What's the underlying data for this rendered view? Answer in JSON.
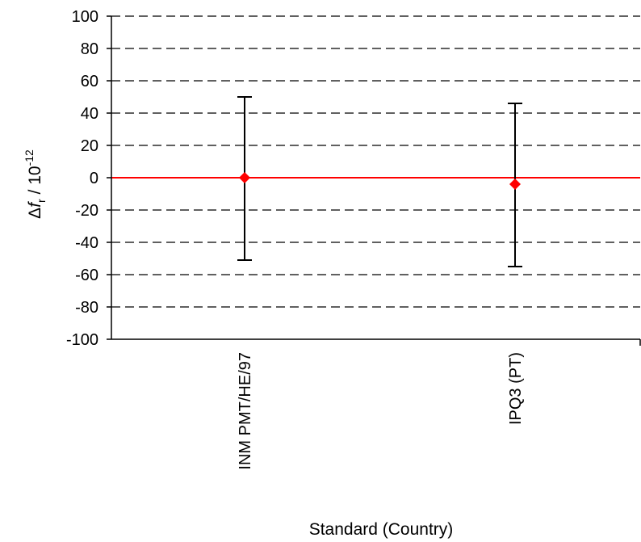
{
  "chart_data": {
    "type": "scatter",
    "categories": [
      "INM PMT/HE/97",
      "IPQ3 (PT)"
    ],
    "series": [
      {
        "values": [
          0,
          -4
        ],
        "error_low": [
          -51,
          -55
        ],
        "error_high": [
          50,
          46
        ],
        "marker": "diamond",
        "color": "#ff0000"
      }
    ],
    "reference_line": {
      "y": 0,
      "color": "#ff0000"
    },
    "yticks": [
      "100",
      "80",
      "60",
      "40",
      "20",
      "0",
      "-20",
      "-40",
      "-60",
      "-80",
      "-100"
    ],
    "ylim": [
      -100,
      100
    ],
    "ylabel": {
      "prefix": "Δ",
      "symbol": "f",
      "subscript": "r",
      "middle": " / 10",
      "superscript": "-12"
    },
    "xlabel": "Standard (Country)",
    "grid": "horizontal dashed",
    "colors": {
      "marker": "#ff0000",
      "error_bar": "#000000",
      "grid": "#000000"
    }
  }
}
